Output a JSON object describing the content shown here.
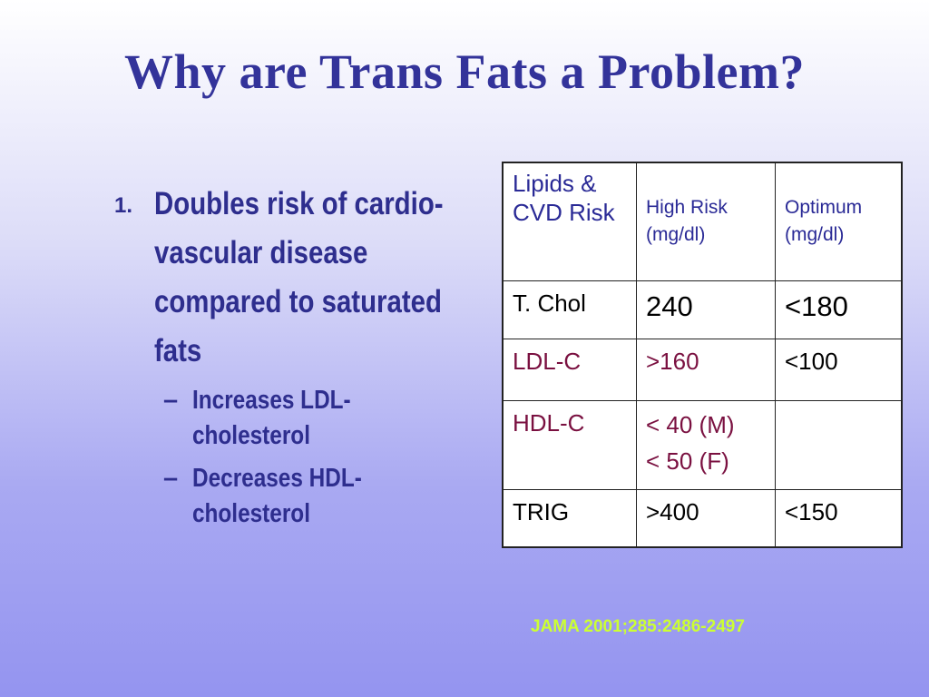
{
  "slide": {
    "title": "Why are Trans Fats a Problem?",
    "point": {
      "number": "1.",
      "text": "Doubles risk of cardio-vascular disease compared to saturated fats",
      "subpoints": [
        "Increases LDL-cholesterol",
        "Decreases HDL-cholesterol"
      ]
    },
    "dash": "–",
    "table": {
      "headers": [
        "Lipids & CVD Risk",
        "High Risk (mg/dl)",
        "Optimum (mg/dl)"
      ],
      "rows": [
        {
          "name": "T. Chol",
          "high": "240",
          "optimum": "<180"
        },
        {
          "name": "LDL-C",
          "high": ">160",
          "optimum": "<100"
        },
        {
          "name": "HDL-C",
          "high_lines": [
            "< 40 (M)",
            "< 50 (F)"
          ],
          "optimum": ""
        },
        {
          "name": "TRIG",
          "high": ">400",
          "optimum": "<150"
        }
      ]
    },
    "citation": "JAMA 2001;285:2486-2497",
    "colors": {
      "title": "#33339a",
      "body": "#2e2e8e",
      "maroon": "#7a1040",
      "citation": "#ccff33"
    }
  }
}
